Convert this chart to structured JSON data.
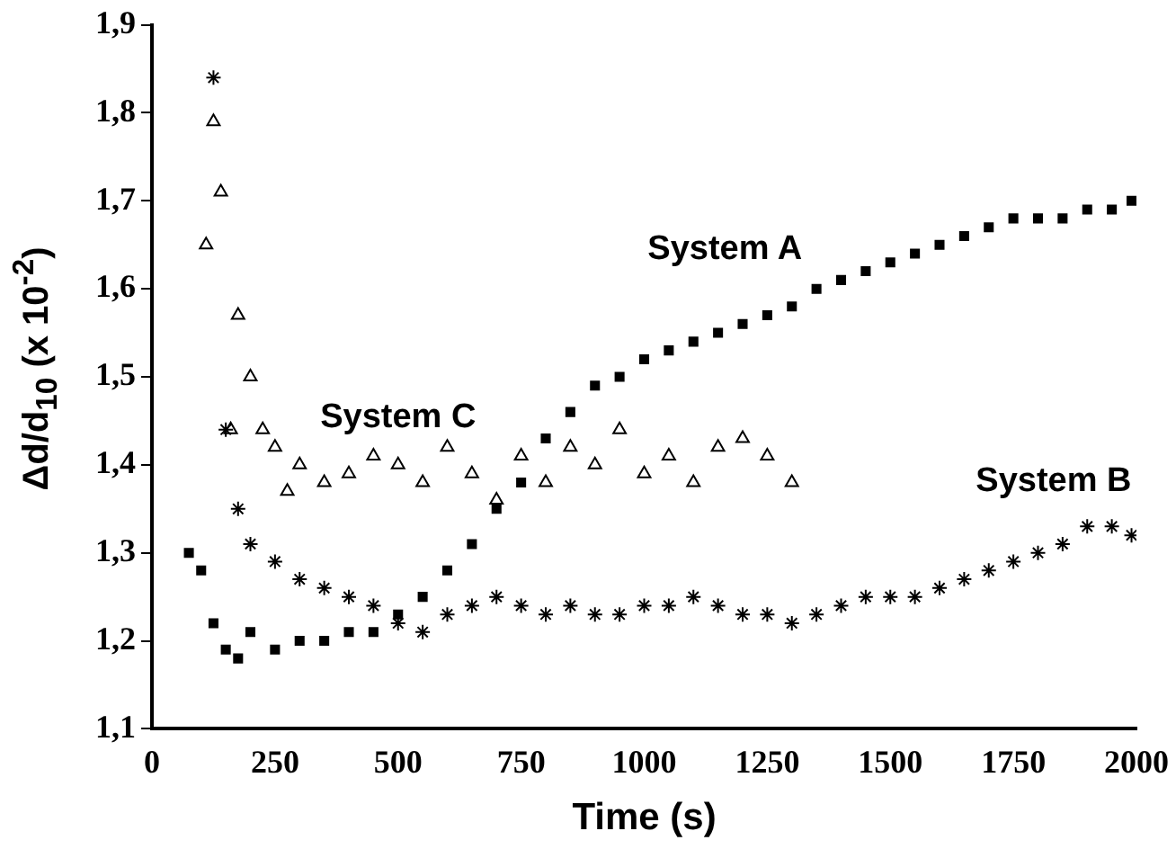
{
  "chart_data": {
    "type": "scatter",
    "xlabel": "Time (s)",
    "ylabel": "Δd/d$_{10}$  (x 10$^{-2}$)",
    "xlim": [
      0,
      2000
    ],
    "xticks": [
      0,
      250,
      500,
      750,
      1000,
      1250,
      1500,
      1750,
      2000
    ],
    "ylim": [
      1.1,
      1.9
    ],
    "yticks": [
      {
        "value": 1.1,
        "label": "1,1"
      },
      {
        "value": 1.2,
        "label": "1,2"
      },
      {
        "value": 1.3,
        "label": "1,3"
      },
      {
        "value": 1.4,
        "label": "1,4"
      },
      {
        "value": 1.5,
        "label": "1,5"
      },
      {
        "value": 1.6,
        "label": "1,6"
      },
      {
        "value": 1.7,
        "label": "1,7"
      },
      {
        "value": 1.8,
        "label": "1,8"
      },
      {
        "value": 1.9,
        "label": "1,9"
      }
    ],
    "grid": false,
    "legend": false,
    "series": [
      {
        "name": "System A",
        "color": "#000000",
        "marker": "square",
        "x": [
          75,
          100,
          125,
          150,
          175,
          200,
          250,
          300,
          350,
          400,
          450,
          500,
          550,
          600,
          650,
          700,
          750,
          800,
          850,
          900,
          950,
          1000,
          1050,
          1100,
          1150,
          1200,
          1250,
          1300,
          1350,
          1400,
          1450,
          1500,
          1550,
          1600,
          1650,
          1700,
          1750,
          1800,
          1850,
          1900,
          1950,
          1990
        ],
        "values": [
          1.3,
          1.28,
          1.22,
          1.19,
          1.18,
          1.21,
          1.19,
          1.2,
          1.2,
          1.21,
          1.21,
          1.23,
          1.25,
          1.28,
          1.31,
          1.35,
          1.38,
          1.43,
          1.46,
          1.49,
          1.5,
          1.52,
          1.53,
          1.54,
          1.55,
          1.56,
          1.57,
          1.58,
          1.6,
          1.61,
          1.62,
          1.63,
          1.64,
          1.65,
          1.66,
          1.67,
          1.68,
          1.68,
          1.68,
          1.69,
          1.69,
          1.7
        ]
      },
      {
        "name": "System B",
        "color": "#000000",
        "marker": "cross",
        "x": [
          125,
          150,
          175,
          200,
          250,
          300,
          350,
          400,
          450,
          500,
          550,
          600,
          650,
          700,
          750,
          800,
          850,
          900,
          950,
          1000,
          1050,
          1100,
          1150,
          1200,
          1250,
          1300,
          1350,
          1400,
          1450,
          1500,
          1550,
          1600,
          1650,
          1700,
          1750,
          1800,
          1850,
          1900,
          1950,
          1990
        ],
        "values": [
          1.84,
          1.44,
          1.35,
          1.31,
          1.29,
          1.27,
          1.26,
          1.25,
          1.24,
          1.22,
          1.21,
          1.23,
          1.24,
          1.25,
          1.24,
          1.23,
          1.24,
          1.23,
          1.23,
          1.24,
          1.24,
          1.25,
          1.24,
          1.23,
          1.23,
          1.22,
          1.23,
          1.24,
          1.25,
          1.25,
          1.25,
          1.26,
          1.27,
          1.28,
          1.29,
          1.3,
          1.31,
          1.33,
          1.33,
          1.32
        ]
      },
      {
        "name": "System C",
        "color": "#000000",
        "marker": "triangle",
        "x": [
          110,
          125,
          140,
          160,
          175,
          200,
          225,
          250,
          275,
          300,
          350,
          400,
          450,
          500,
          550,
          600,
          650,
          700,
          750,
          800,
          850,
          900,
          950,
          1000,
          1050,
          1100,
          1150,
          1200,
          1250,
          1300
        ],
        "values": [
          1.65,
          1.79,
          1.71,
          1.44,
          1.57,
          1.5,
          1.44,
          1.42,
          1.37,
          1.4,
          1.38,
          1.39,
          1.41,
          1.4,
          1.38,
          1.42,
          1.39,
          1.36,
          1.41,
          1.38,
          1.42,
          1.4,
          1.44,
          1.39,
          1.41,
          1.38,
          1.42,
          1.43,
          1.41,
          1.38
        ]
      }
    ]
  }
}
